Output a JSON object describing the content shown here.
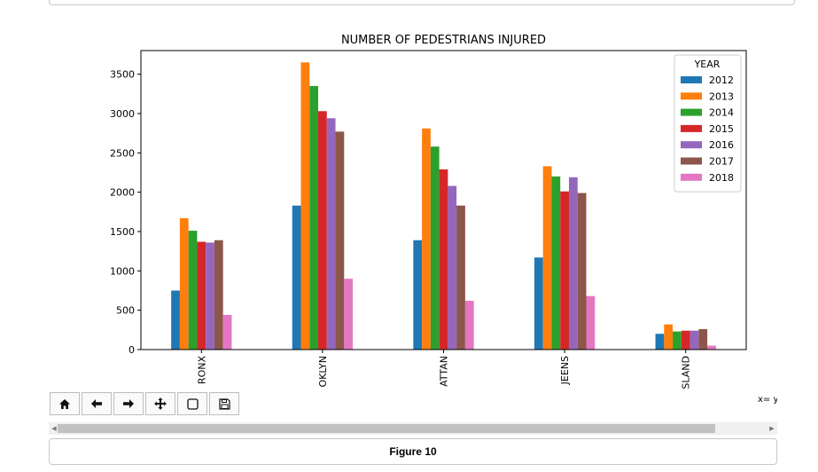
{
  "figure": {
    "caption": "Figure 10",
    "coord_readout": "x= y"
  },
  "toolbar": {
    "buttons": [
      {
        "name": "home-button",
        "icon": "home-icon",
        "glyph": "⌂"
      },
      {
        "name": "back-button",
        "icon": "arrow-left-icon",
        "glyph": "←"
      },
      {
        "name": "forward-button",
        "icon": "arrow-right-icon",
        "glyph": "→"
      },
      {
        "name": "pan-button",
        "icon": "move-icon",
        "glyph": "✥"
      },
      {
        "name": "zoom-rect-button",
        "icon": "square-icon",
        "glyph": "▢"
      },
      {
        "name": "save-button",
        "icon": "floppy-disk-icon",
        "glyph": "🖫"
      }
    ]
  },
  "chart_data": {
    "type": "bar",
    "title": "NUMBER OF PEDESTRIANS INJURED",
    "xlabel": "",
    "ylabel": "",
    "categories": [
      "BRONX",
      "BROOKLYN",
      "MANHATTAN",
      "QUEENS",
      "STATEN ISLAND"
    ],
    "visible_tick_labels": [
      "RONX",
      "OKLYN",
      "ATTAN",
      "JEENS",
      "SLAND"
    ],
    "ylim": [
      0,
      3800
    ],
    "yticks": [
      0,
      500,
      1000,
      1500,
      2000,
      2500,
      3000,
      3500
    ],
    "legend_title": "YEAR",
    "legend_position": "top-right",
    "grid": false,
    "series": [
      {
        "name": "2012",
        "color": "#1f77b4",
        "values": [
          750,
          1830,
          1390,
          1170,
          200
        ]
      },
      {
        "name": "2013",
        "color": "#ff7f0e",
        "values": [
          1670,
          3650,
          2810,
          2330,
          320
        ]
      },
      {
        "name": "2014",
        "color": "#2ca02c",
        "values": [
          1510,
          3350,
          2580,
          2200,
          230
        ]
      },
      {
        "name": "2015",
        "color": "#d62728",
        "values": [
          1370,
          3030,
          2290,
          2010,
          240
        ]
      },
      {
        "name": "2016",
        "color": "#9467bd",
        "values": [
          1360,
          2940,
          2080,
          2190,
          240
        ]
      },
      {
        "name": "2017",
        "color": "#8c564b",
        "values": [
          1390,
          2770,
          1830,
          1990,
          260
        ]
      },
      {
        "name": "2018",
        "color": "#e377c2",
        "values": [
          440,
          900,
          620,
          680,
          50
        ]
      }
    ]
  }
}
